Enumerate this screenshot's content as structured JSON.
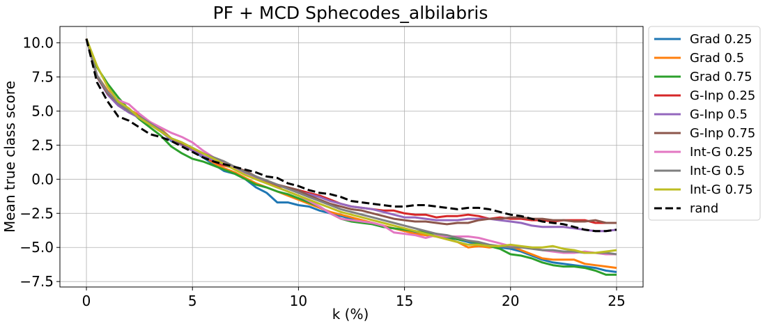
{
  "chart_data": {
    "type": "line",
    "title": "PF + MCD Sphecodes_albilabris",
    "xlabel": "k (%)",
    "ylabel": "Mean true class score",
    "xlim": [
      -1.25,
      26.25
    ],
    "ylim": [
      -7.9,
      11.2
    ],
    "xticks": [
      0,
      5,
      10,
      15,
      20,
      25
    ],
    "xtick_labels": [
      "0",
      "5",
      "10",
      "15",
      "20",
      "25"
    ],
    "yticks": [
      -7.5,
      -5.0,
      -2.5,
      0.0,
      2.5,
      5.0,
      7.5,
      10.0
    ],
    "ytick_labels": [
      "−7.5",
      "−5.0",
      "−2.5",
      "0.0",
      "2.5",
      "5.0",
      "7.5",
      "10.0"
    ],
    "grid": true,
    "legend_position": "outside-right",
    "x": [
      0,
      0.5,
      1,
      1.5,
      2,
      2.5,
      3,
      3.5,
      4,
      4.5,
      5,
      5.5,
      6,
      6.5,
      7,
      7.5,
      8,
      8.5,
      9,
      9.5,
      10,
      10.5,
      11,
      11.5,
      12,
      12.5,
      13,
      13.5,
      14,
      14.5,
      15,
      15.5,
      16,
      16.5,
      17,
      17.5,
      18,
      18.5,
      19,
      19.5,
      20,
      20.5,
      21,
      21.5,
      22,
      22.5,
      23,
      23.5,
      24,
      24.5,
      25
    ],
    "series": [
      {
        "name": "Grad 0.25",
        "color": "#1f77b4",
        "dashed": false,
        "values": [
          10.3,
          7.5,
          6.4,
          5.6,
          5.0,
          4.6,
          4.0,
          3.6,
          2.8,
          2.6,
          2.1,
          1.6,
          1.1,
          0.6,
          0.4,
          0.0,
          -0.6,
          -1.0,
          -1.7,
          -1.7,
          -1.9,
          -2.0,
          -2.3,
          -2.5,
          -2.7,
          -2.9,
          -3.1,
          -3.3,
          -3.5,
          -3.6,
          -3.8,
          -3.9,
          -4.0,
          -4.2,
          -4.3,
          -4.4,
          -4.6,
          -4.8,
          -4.9,
          -5.0,
          -5.1,
          -5.3,
          -5.6,
          -5.9,
          -6.1,
          -6.2,
          -6.3,
          -6.4,
          -6.5,
          -6.7,
          -6.8
        ]
      },
      {
        "name": "Grad 0.5",
        "color": "#ff7f0e",
        "dashed": false,
        "values": [
          10.3,
          7.6,
          6.5,
          5.7,
          5.1,
          4.7,
          4.1,
          3.7,
          3.0,
          2.6,
          2.2,
          1.7,
          1.2,
          0.8,
          0.5,
          0.1,
          -0.3,
          -0.6,
          -0.9,
          -1.2,
          -1.5,
          -1.8,
          -2.1,
          -2.4,
          -2.6,
          -2.8,
          -3.0,
          -3.2,
          -3.4,
          -3.6,
          -3.8,
          -4.0,
          -4.1,
          -4.2,
          -4.4,
          -4.6,
          -5.0,
          -4.9,
          -5.0,
          -4.9,
          -4.9,
          -5.2,
          -5.5,
          -5.8,
          -5.9,
          -5.9,
          -5.9,
          -6.2,
          -6.3,
          -6.4,
          -6.5
        ]
      },
      {
        "name": "Grad 0.75",
        "color": "#2ca02c",
        "dashed": false,
        "values": [
          10.3,
          8.2,
          7.0,
          6.0,
          5.1,
          4.4,
          3.8,
          3.2,
          2.4,
          1.9,
          1.5,
          1.3,
          1.0,
          0.7,
          0.4,
          0.0,
          -0.4,
          -0.6,
          -0.9,
          -1.1,
          -1.4,
          -1.7,
          -2.0,
          -2.5,
          -2.9,
          -3.1,
          -3.2,
          -3.3,
          -3.5,
          -3.6,
          -3.7,
          -3.8,
          -3.9,
          -4.0,
          -4.2,
          -4.4,
          -4.5,
          -4.7,
          -4.9,
          -5.1,
          -5.5,
          -5.6,
          -5.8,
          -6.1,
          -6.3,
          -6.4,
          -6.4,
          -6.5,
          -6.7,
          -7.0,
          -7.0
        ]
      },
      {
        "name": "G-Inp 0.25",
        "color": "#d62728",
        "dashed": false,
        "values": [
          10.3,
          7.6,
          6.3,
          5.5,
          5.0,
          4.6,
          4.2,
          3.6,
          2.9,
          2.5,
          2.1,
          1.7,
          1.3,
          1.0,
          0.8,
          0.4,
          0.0,
          -0.2,
          -0.5,
          -0.6,
          -0.8,
          -1.0,
          -1.2,
          -1.5,
          -1.8,
          -2.0,
          -2.1,
          -2.2,
          -2.3,
          -2.3,
          -2.5,
          -2.6,
          -2.6,
          -2.8,
          -2.7,
          -2.7,
          -2.6,
          -2.7,
          -2.9,
          -2.8,
          -2.9,
          -2.9,
          -3.0,
          -3.0,
          -3.1,
          -3.0,
          -3.0,
          -3.0,
          -3.2,
          -3.2,
          -3.2
        ]
      },
      {
        "name": "G-Inp 0.5",
        "color": "#9467bd",
        "dashed": false,
        "values": [
          10.3,
          7.5,
          6.2,
          5.4,
          4.9,
          4.5,
          4.0,
          3.5,
          2.9,
          2.5,
          2.1,
          1.7,
          1.4,
          1.1,
          0.8,
          0.5,
          0.1,
          -0.1,
          -0.4,
          -0.7,
          -0.9,
          -1.1,
          -1.3,
          -1.6,
          -1.8,
          -2.0,
          -2.1,
          -2.2,
          -2.4,
          -2.6,
          -2.8,
          -2.8,
          -2.9,
          -3.0,
          -3.0,
          -3.0,
          -2.9,
          -2.9,
          -2.9,
          -3.0,
          -3.1,
          -3.2,
          -3.4,
          -3.5,
          -3.5,
          -3.5,
          -3.6,
          -3.7,
          -3.8,
          -3.8,
          -3.7
        ]
      },
      {
        "name": "G-Inp 0.75",
        "color": "#8c564b",
        "dashed": false,
        "values": [
          10.3,
          7.5,
          6.3,
          5.6,
          5.0,
          4.6,
          4.1,
          3.6,
          3.0,
          2.6,
          2.3,
          1.9,
          1.6,
          1.3,
          0.9,
          0.6,
          0.2,
          -0.1,
          -0.4,
          -0.6,
          -0.8,
          -1.2,
          -1.5,
          -1.8,
          -2.0,
          -2.2,
          -2.3,
          -2.5,
          -2.7,
          -2.9,
          -3.0,
          -3.1,
          -3.1,
          -3.2,
          -3.3,
          -3.2,
          -3.2,
          -3.0,
          -2.9,
          -2.9,
          -2.8,
          -2.8,
          -2.9,
          -2.9,
          -3.0,
          -3.0,
          -3.1,
          -3.1,
          -3.0,
          -3.2,
          -3.2
        ]
      },
      {
        "name": "Int-G 0.25",
        "color": "#e377c2",
        "dashed": false,
        "values": [
          10.3,
          7.6,
          6.4,
          5.8,
          5.5,
          4.8,
          4.2,
          3.8,
          3.4,
          3.1,
          2.7,
          2.1,
          1.6,
          1.2,
          0.8,
          0.4,
          0.0,
          -0.3,
          -0.6,
          -0.9,
          -1.2,
          -1.6,
          -2.0,
          -2.5,
          -2.9,
          -3.0,
          -3.1,
          -3.2,
          -3.4,
          -3.9,
          -4.0,
          -4.1,
          -4.3,
          -4.1,
          -4.2,
          -4.2,
          -4.2,
          -4.3,
          -4.5,
          -4.7,
          -4.9,
          -5.0,
          -5.0,
          -5.2,
          -5.3,
          -5.4,
          -5.4,
          -5.3,
          -5.4,
          -5.5,
          -5.5
        ]
      },
      {
        "name": "Int-G 0.5",
        "color": "#7f7f7f",
        "dashed": false,
        "values": [
          10.3,
          7.6,
          6.4,
          5.6,
          5.0,
          4.6,
          4.1,
          3.6,
          3.0,
          2.7,
          2.3,
          1.9,
          1.6,
          1.3,
          0.9,
          0.5,
          0.2,
          -0.1,
          -0.4,
          -0.7,
          -1.0,
          -1.3,
          -1.6,
          -1.9,
          -2.2,
          -2.4,
          -2.6,
          -2.8,
          -3.0,
          -3.2,
          -3.4,
          -3.6,
          -3.8,
          -4.0,
          -4.1,
          -4.3,
          -4.5,
          -4.6,
          -4.8,
          -4.9,
          -5.0,
          -5.0,
          -5.1,
          -5.2,
          -5.2,
          -5.3,
          -5.3,
          -5.4,
          -5.4,
          -5.4,
          -5.5
        ]
      },
      {
        "name": "Int-G 0.75",
        "color": "#bcbd22",
        "dashed": false,
        "values": [
          10.3,
          8.3,
          6.8,
          5.7,
          5.2,
          4.5,
          4.0,
          3.5,
          3.0,
          2.7,
          2.3,
          1.9,
          1.5,
          1.1,
          0.7,
          0.3,
          0.0,
          -0.3,
          -0.6,
          -0.9,
          -1.2,
          -1.5,
          -1.8,
          -2.1,
          -2.4,
          -2.6,
          -2.8,
          -3.0,
          -3.2,
          -3.4,
          -3.6,
          -3.8,
          -4.0,
          -4.2,
          -4.4,
          -4.6,
          -4.8,
          -4.8,
          -4.9,
          -4.9,
          -4.8,
          -4.9,
          -5.0,
          -5.0,
          -4.9,
          -5.1,
          -5.2,
          -5.4,
          -5.4,
          -5.3,
          -5.2
        ]
      },
      {
        "name": "rand",
        "color": "#000000",
        "dashed": true,
        "values": [
          10.3,
          7.1,
          5.7,
          4.6,
          4.3,
          3.8,
          3.3,
          3.1,
          2.8,
          2.4,
          2.0,
          1.6,
          1.3,
          1.1,
          0.9,
          0.7,
          0.5,
          0.2,
          0.1,
          -0.3,
          -0.5,
          -0.8,
          -1.0,
          -1.1,
          -1.3,
          -1.6,
          -1.7,
          -1.8,
          -1.9,
          -2.0,
          -2.0,
          -1.9,
          -1.9,
          -2.0,
          -2.1,
          -2.2,
          -2.1,
          -2.1,
          -2.2,
          -2.4,
          -2.6,
          -2.7,
          -2.9,
          -3.1,
          -3.2,
          -3.3,
          -3.5,
          -3.7,
          -3.8,
          -3.8,
          -3.7
        ]
      }
    ]
  }
}
